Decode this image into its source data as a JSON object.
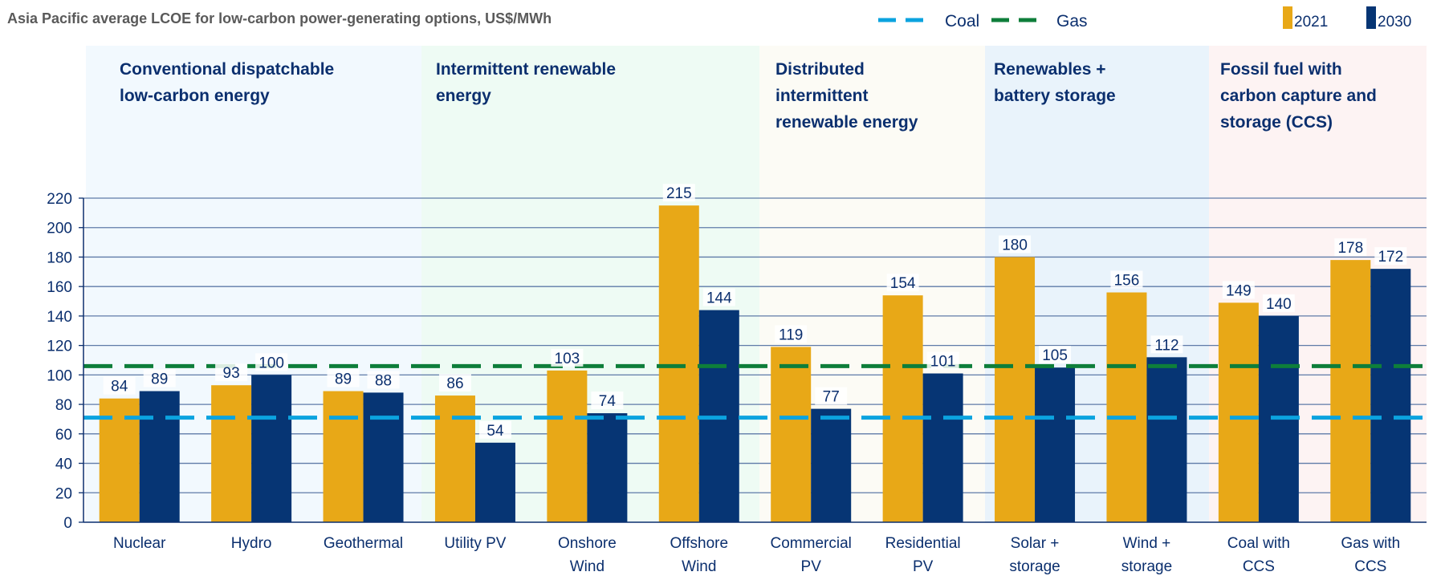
{
  "chart_data": {
    "type": "bar",
    "title": "Asia Pacific average LCOE for low-carbon power-generating options, US$/MWh",
    "ylim": [
      0,
      220
    ],
    "yticks": [
      "0",
      "20",
      "40",
      "60",
      "80",
      "100",
      "120",
      "140",
      "160",
      "180",
      "200",
      "220"
    ],
    "grid": true,
    "legend_placement": "top-right",
    "categories": [
      [
        "Nuclear"
      ],
      [
        "Hydro"
      ],
      [
        "Geothermal"
      ],
      [
        "Utility PV"
      ],
      [
        "Onshore",
        "Wind"
      ],
      [
        "Offshore",
        "Wind"
      ],
      [
        "Commercial",
        "PV"
      ],
      [
        "Residential",
        "PV"
      ],
      [
        "Solar +",
        "storage"
      ],
      [
        "Wind +",
        "storage"
      ],
      [
        "Coal with",
        "CCS"
      ],
      [
        "Gas with",
        "CCS"
      ]
    ],
    "series": [
      {
        "name": "2021",
        "color": "#E8A817",
        "values": [
          84,
          93,
          89,
          86,
          103,
          215,
          119,
          154,
          180,
          156,
          149,
          178
        ]
      },
      {
        "name": "2030",
        "color": "#063574",
        "values": [
          89,
          100,
          88,
          54,
          74,
          144,
          77,
          101,
          105,
          112,
          140,
          172
        ]
      }
    ],
    "reference_lines": [
      {
        "name": "Coal",
        "value": 71,
        "color": "#0BA3DF",
        "style": "dashed"
      },
      {
        "name": "Gas",
        "value": 106,
        "color": "#0E7E3A",
        "style": "dashed"
      }
    ],
    "groups": [
      {
        "label": [
          "Conventional dispatchable",
          "low-carbon energy"
        ],
        "span": [
          0,
          2
        ],
        "color": "#F2F9FE"
      },
      {
        "label": [
          "Intermittent renewable",
          "energy"
        ],
        "span": [
          3,
          5
        ],
        "color": "#EEFBF4"
      },
      {
        "label": [
          "Distributed",
          "intermittent",
          "renewable energy"
        ],
        "span": [
          6,
          7
        ],
        "color": "#FCFBF5"
      },
      {
        "label": [
          "Renewables +",
          "battery storage"
        ],
        "span": [
          8,
          9
        ],
        "color": "#E9F3FB"
      },
      {
        "label": [
          "Fossil fuel with",
          "carbon capture and",
          "storage (CCS)"
        ],
        "span": [
          10,
          11
        ],
        "color": "#FDF3F3"
      }
    ]
  }
}
